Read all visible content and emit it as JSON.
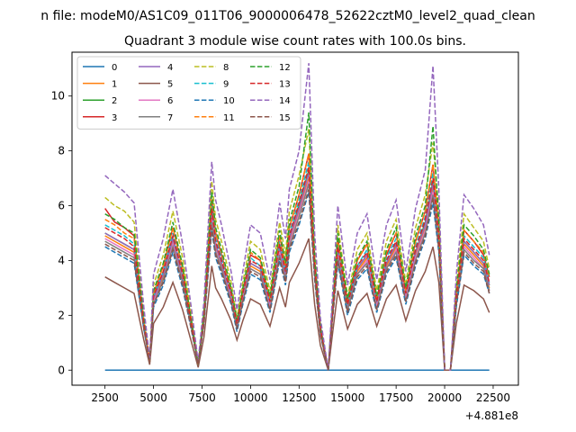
{
  "figure": {
    "suptitle": "n file: modeM0/AS1C09_011T06_9000006478_52622cztM0_level2_quad_clean",
    "title": "Quadrant 3 module wise count rates with 100.0s bins.",
    "offset_label": "+4.881e8"
  },
  "chart_data": {
    "type": "line",
    "title": "Quadrant 3 module wise count rates with 100.0s bins.",
    "xlabel": "",
    "ylabel": "",
    "x_offset": "+4.881e8",
    "xlim": [
      800,
      23800
    ],
    "ylim": [
      -0.55,
      11.6
    ],
    "xticks": [
      2500,
      5000,
      7500,
      10000,
      12500,
      15000,
      17500,
      20000,
      22500
    ],
    "yticks": [
      0,
      2,
      4,
      6,
      8,
      10
    ],
    "grid": false,
    "legend": {
      "placement": "upper-left",
      "columns": 4
    },
    "x": [
      2500,
      3000,
      3500,
      4000,
      4500,
      4800,
      5000,
      5500,
      6000,
      6500,
      7000,
      7300,
      7600,
      8000,
      8200,
      8500,
      9000,
      9300,
      9600,
      10000,
      10500,
      11000,
      11500,
      11800,
      12000,
      12500,
      13000,
      13300,
      13600,
      14000,
      14200,
      14500,
      15000,
      15500,
      16000,
      16500,
      17000,
      17500,
      18000,
      18500,
      19000,
      19400,
      19700,
      20000,
      20300,
      20600,
      21000,
      21500,
      22000,
      22300
    ],
    "series": [
      {
        "name": "0",
        "color": "#1f77b4",
        "dash": "solid",
        "values": [
          0,
          0,
          0,
          0,
          0,
          0,
          0,
          0,
          0,
          0,
          0,
          0,
          0,
          0,
          0,
          0,
          0,
          0,
          0,
          0,
          0,
          0,
          0,
          0,
          0,
          0,
          0,
          0,
          0,
          0,
          0,
          0,
          0,
          0,
          0,
          0,
          0,
          0,
          0,
          0,
          0,
          0,
          0,
          0,
          0,
          0,
          0,
          0,
          0,
          0
        ]
      },
      {
        "name": "1",
        "color": "#ff7f0e",
        "dash": "solid",
        "values": [
          4.9,
          4.7,
          4.5,
          4.3,
          1.6,
          0.3,
          2.5,
          3.4,
          4.7,
          3.3,
          1.4,
          0.2,
          1.8,
          5.6,
          4.5,
          3.8,
          2.6,
          1.6,
          2.6,
          3.8,
          3.6,
          2.3,
          4.4,
          3.4,
          4.7,
          5.8,
          7.0,
          3.6,
          1.4,
          0,
          1.8,
          4.3,
          2.2,
          3.6,
          4.1,
          2.3,
          3.8,
          4.5,
          2.6,
          4.2,
          5.2,
          6.6,
          4.7,
          0,
          0,
          2.5,
          4.6,
          4.2,
          3.8,
          3.0
        ]
      },
      {
        "name": "2",
        "color": "#2ca02c",
        "dash": "solid",
        "values": [
          5.0,
          4.8,
          4.6,
          4.4,
          1.7,
          0.3,
          2.6,
          3.5,
          4.8,
          3.4,
          1.5,
          0.2,
          1.9,
          5.8,
          4.6,
          3.9,
          2.7,
          1.6,
          2.7,
          3.9,
          3.7,
          2.4,
          4.5,
          3.5,
          4.8,
          6.0,
          7.3,
          3.7,
          1.4,
          0,
          1.9,
          4.4,
          2.3,
          3.7,
          4.2,
          2.4,
          3.9,
          4.6,
          2.7,
          4.3,
          5.4,
          6.9,
          4.8,
          0,
          0,
          2.6,
          4.7,
          4.3,
          3.9,
          3.1
        ]
      },
      {
        "name": "3",
        "color": "#d62728",
        "dash": "solid",
        "values": [
          5.9,
          5.4,
          5.2,
          4.9,
          1.8,
          0.3,
          2.8,
          3.8,
          5.2,
          3.7,
          1.6,
          0.2,
          2.0,
          6.2,
          5.0,
          4.2,
          2.9,
          1.7,
          2.9,
          4.2,
          4.0,
          2.6,
          4.9,
          3.8,
          5.2,
          6.4,
          7.9,
          4.0,
          1.5,
          0,
          2.0,
          4.8,
          2.5,
          4.0,
          4.6,
          2.6,
          4.2,
          5.0,
          2.9,
          4.7,
          5.8,
          7.5,
          5.2,
          0,
          0,
          2.8,
          5.1,
          4.7,
          4.2,
          3.4
        ]
      },
      {
        "name": "4",
        "color": "#9467bd",
        "dash": "solid",
        "values": [
          5.0,
          4.8,
          4.6,
          4.4,
          1.7,
          0.3,
          2.6,
          3.5,
          4.8,
          3.4,
          1.5,
          0.2,
          1.9,
          5.7,
          4.6,
          3.9,
          2.7,
          1.6,
          2.7,
          3.9,
          3.7,
          2.4,
          4.5,
          3.5,
          4.8,
          5.9,
          7.2,
          3.7,
          1.4,
          0,
          1.9,
          4.4,
          2.3,
          3.7,
          4.2,
          2.4,
          3.9,
          4.6,
          2.7,
          4.3,
          5.3,
          6.8,
          4.8,
          0,
          0,
          2.6,
          4.7,
          4.3,
          3.9,
          3.1
        ]
      },
      {
        "name": "5",
        "color": "#8c564b",
        "dash": "solid",
        "values": [
          3.4,
          3.2,
          3.0,
          2.8,
          1.1,
          0.2,
          1.7,
          2.3,
          3.2,
          2.2,
          0.9,
          0.1,
          1.2,
          3.8,
          3.0,
          2.6,
          1.8,
          1.1,
          1.8,
          2.6,
          2.4,
          1.6,
          3.0,
          2.3,
          3.2,
          3.9,
          4.8,
          2.4,
          0.9,
          0,
          1.2,
          2.9,
          1.5,
          2.4,
          2.8,
          1.6,
          2.6,
          3.1,
          1.8,
          2.9,
          3.6,
          4.5,
          3.2,
          0,
          0,
          1.7,
          3.1,
          2.9,
          2.6,
          2.1
        ]
      },
      {
        "name": "6",
        "color": "#e377c2",
        "dash": "solid",
        "values": [
          4.8,
          4.6,
          4.4,
          4.2,
          1.6,
          0.3,
          2.5,
          3.3,
          4.6,
          3.2,
          1.4,
          0.2,
          1.8,
          5.5,
          4.4,
          3.7,
          2.6,
          1.5,
          2.6,
          3.7,
          3.5,
          2.3,
          4.3,
          3.3,
          4.6,
          5.7,
          6.9,
          3.5,
          1.4,
          0,
          1.8,
          4.2,
          2.2,
          3.5,
          4.0,
          2.3,
          3.7,
          4.4,
          2.6,
          4.1,
          5.1,
          6.5,
          4.6,
          0,
          0,
          2.5,
          4.5,
          4.1,
          3.7,
          2.9
        ]
      },
      {
        "name": "7",
        "color": "#7f7f7f",
        "dash": "solid",
        "values": [
          4.7,
          4.5,
          4.3,
          4.1,
          1.6,
          0.3,
          2.4,
          3.3,
          4.5,
          3.2,
          1.4,
          0.2,
          1.8,
          5.4,
          4.3,
          3.7,
          2.5,
          1.5,
          2.5,
          3.7,
          3.5,
          2.2,
          4.2,
          3.3,
          4.5,
          5.6,
          6.8,
          3.5,
          1.3,
          0,
          1.8,
          4.1,
          2.2,
          3.5,
          3.9,
          2.2,
          3.7,
          4.3,
          2.5,
          4.0,
          5.0,
          6.4,
          4.5,
          0,
          0,
          2.4,
          4.4,
          4.0,
          3.7,
          2.9
        ]
      },
      {
        "name": "8",
        "color": "#bcbd22",
        "dash": "dashed",
        "values": [
          6.3,
          6.0,
          5.8,
          5.4,
          2.0,
          0.4,
          3.1,
          4.2,
          5.8,
          4.1,
          1.8,
          0.2,
          2.2,
          6.9,
          5.5,
          4.7,
          3.2,
          1.9,
          3.2,
          4.7,
          4.4,
          2.9,
          5.4,
          4.2,
          5.8,
          7.1,
          8.8,
          4.4,
          1.7,
          0,
          2.2,
          5.3,
          2.7,
          4.4,
          5.0,
          2.9,
          4.7,
          5.5,
          3.2,
          5.2,
          6.4,
          8.3,
          5.8,
          0,
          0,
          3.1,
          5.7,
          5.2,
          4.7,
          3.7
        ]
      },
      {
        "name": "9",
        "color": "#17becf",
        "dash": "dashed",
        "values": [
          5.3,
          5.1,
          4.9,
          4.6,
          1.8,
          0.3,
          2.7,
          3.6,
          5.0,
          3.5,
          1.5,
          0.2,
          1.9,
          6.0,
          4.8,
          4.1,
          2.8,
          1.7,
          2.8,
          4.1,
          3.8,
          2.5,
          4.7,
          3.6,
          5.0,
          6.2,
          7.6,
          3.8,
          1.5,
          0,
          1.9,
          4.6,
          2.4,
          3.8,
          4.4,
          2.5,
          4.1,
          4.8,
          2.8,
          4.5,
          5.6,
          7.2,
          5.0,
          0,
          0,
          2.7,
          4.9,
          4.5,
          4.1,
          3.2
        ]
      },
      {
        "name": "10",
        "color": "#1f77b4",
        "dash": "dashed",
        "values": [
          4.5,
          4.3,
          4.1,
          3.9,
          1.5,
          0.3,
          2.3,
          3.1,
          4.3,
          3.0,
          1.3,
          0.2,
          1.7,
          5.1,
          4.1,
          3.5,
          2.4,
          1.4,
          2.4,
          3.5,
          3.3,
          2.1,
          4.0,
          3.1,
          4.3,
          5.3,
          6.5,
          3.3,
          1.3,
          0,
          1.7,
          3.9,
          2.0,
          3.3,
          3.7,
          2.1,
          3.5,
          4.1,
          2.4,
          3.8,
          4.8,
          6.1,
          4.3,
          0,
          0,
          2.3,
          4.2,
          3.8,
          3.5,
          2.8
        ]
      },
      {
        "name": "11",
        "color": "#ff7f0e",
        "dash": "dashed",
        "values": [
          5.5,
          5.3,
          5.0,
          4.8,
          1.8,
          0.3,
          2.8,
          3.8,
          5.2,
          3.7,
          1.6,
          0.2,
          2.0,
          6.4,
          5.0,
          4.3,
          2.9,
          1.8,
          2.9,
          4.3,
          4.0,
          2.6,
          4.9,
          3.8,
          5.2,
          6.4,
          7.9,
          4.0,
          1.6,
          0,
          2.0,
          4.8,
          2.5,
          4.0,
          4.6,
          2.6,
          4.3,
          5.0,
          2.9,
          4.7,
          5.8,
          7.5,
          5.2,
          0,
          0,
          2.8,
          5.1,
          4.7,
          4.3,
          3.4
        ]
      },
      {
        "name": "12",
        "color": "#2ca02c",
        "dash": "dashed",
        "values": [
          5.7,
          5.5,
          5.2,
          5.0,
          1.9,
          0.3,
          2.9,
          3.9,
          5.4,
          3.8,
          1.6,
          0.2,
          2.1,
          6.5,
          5.2,
          4.4,
          3.0,
          1.8,
          3.0,
          4.4,
          4.1,
          2.7,
          5.1,
          3.9,
          5.4,
          6.7,
          9.4,
          4.1,
          1.6,
          0,
          2.1,
          5.0,
          2.6,
          4.1,
          4.7,
          2.7,
          4.4,
          5.2,
          3.0,
          4.9,
          6.0,
          8.9,
          5.4,
          0,
          0,
          2.9,
          5.3,
          4.9,
          4.4,
          3.5
        ]
      },
      {
        "name": "13",
        "color": "#d62728",
        "dash": "dashed",
        "values": [
          5.2,
          5.0,
          4.8,
          4.5,
          1.7,
          0.3,
          2.7,
          3.6,
          4.9,
          3.5,
          1.5,
          0.2,
          1.9,
          5.9,
          4.7,
          4.0,
          2.8,
          1.7,
          2.8,
          4.0,
          3.8,
          2.5,
          4.6,
          3.6,
          4.9,
          6.1,
          7.4,
          3.8,
          1.5,
          0,
          1.9,
          4.5,
          2.4,
          3.8,
          4.3,
          2.5,
          4.0,
          4.7,
          2.8,
          4.4,
          5.5,
          7.0,
          4.9,
          0,
          0,
          2.7,
          4.8,
          4.4,
          4.0,
          3.2
        ]
      },
      {
        "name": "14",
        "color": "#9467bd",
        "dash": "dashed",
        "values": [
          7.1,
          6.8,
          6.5,
          6.1,
          2.3,
          0.4,
          3.5,
          4.8,
          6.6,
          4.6,
          2.0,
          0.3,
          2.5,
          7.6,
          6.2,
          5.3,
          3.6,
          2.2,
          3.6,
          5.3,
          5.0,
          3.3,
          6.1,
          4.8,
          6.6,
          8.0,
          11.2,
          5.0,
          1.9,
          0,
          2.5,
          6.0,
          3.1,
          5.0,
          5.7,
          3.3,
          5.3,
          6.2,
          3.6,
          5.9,
          7.3,
          11.1,
          6.6,
          0,
          0,
          3.5,
          6.4,
          5.9,
          5.3,
          4.2
        ]
      },
      {
        "name": "15",
        "color": "#8c564b",
        "dash": "dashed",
        "values": [
          4.6,
          4.4,
          4.2,
          4.0,
          1.5,
          0.3,
          2.4,
          3.2,
          4.4,
          3.1,
          1.3,
          0.2,
          1.7,
          5.2,
          4.2,
          3.6,
          2.5,
          1.5,
          2.5,
          3.6,
          3.4,
          2.2,
          4.1,
          3.2,
          4.4,
          5.4,
          6.6,
          3.4,
          1.3,
          0,
          1.7,
          4.0,
          2.1,
          3.4,
          3.8,
          2.2,
          3.6,
          4.2,
          2.5,
          3.9,
          4.9,
          6.3,
          4.4,
          0,
          0,
          2.4,
          4.3,
          3.9,
          3.6,
          2.8
        ]
      }
    ]
  }
}
